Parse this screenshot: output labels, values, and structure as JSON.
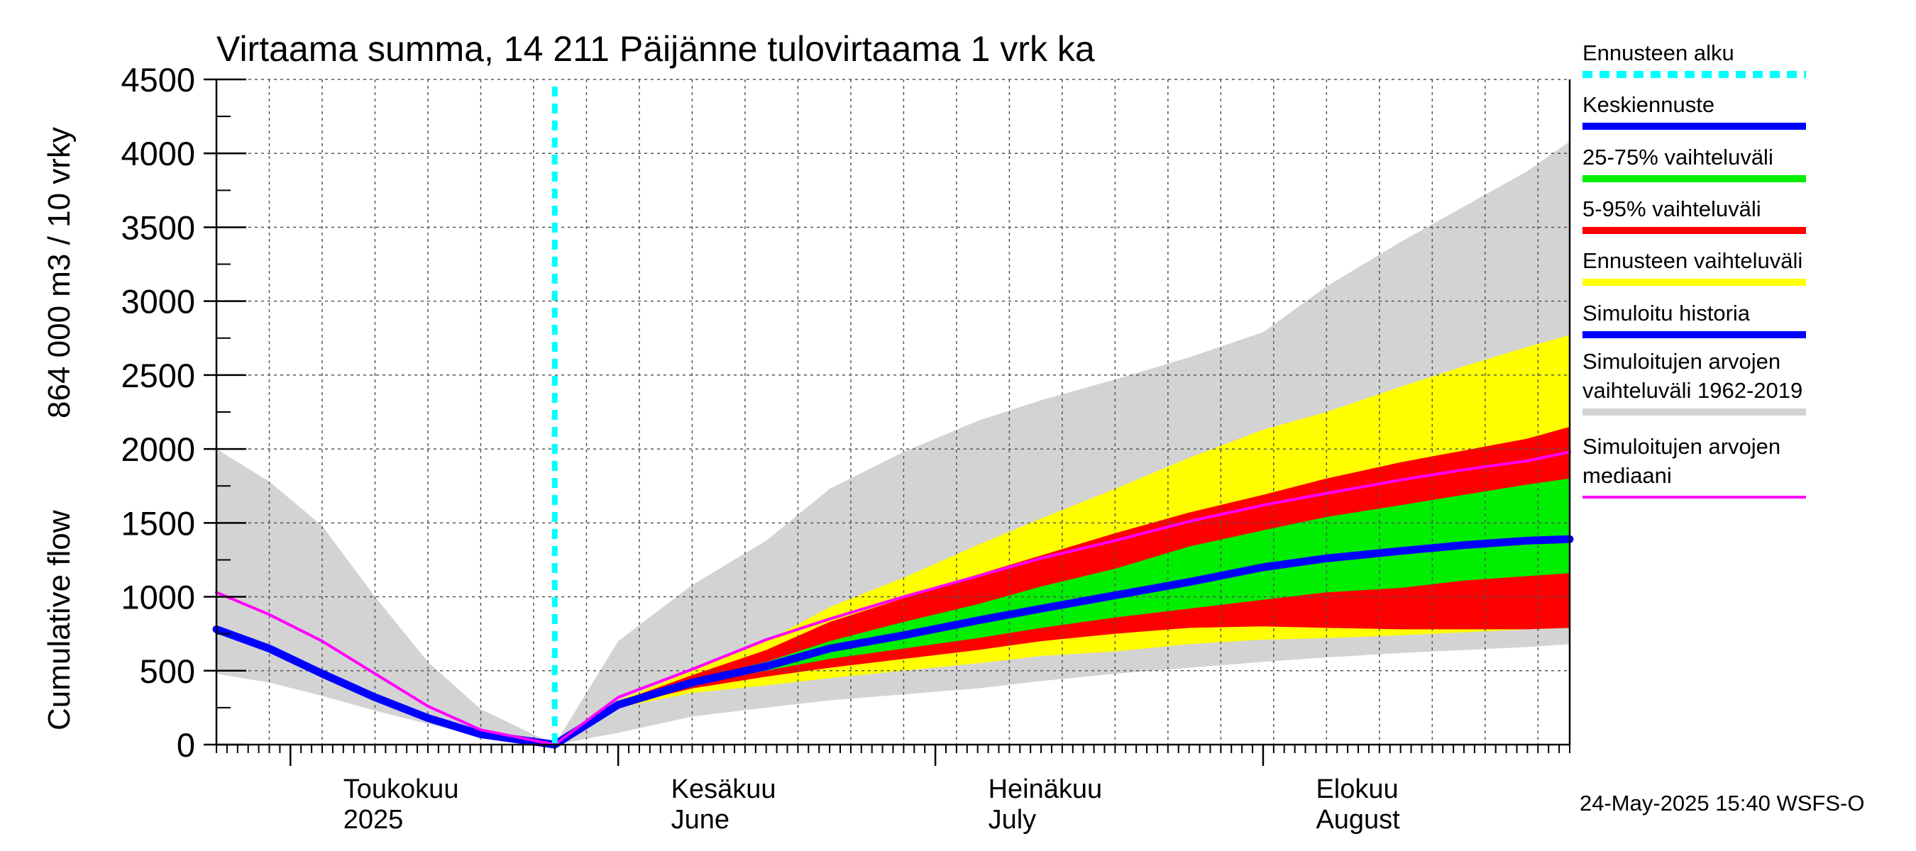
{
  "chart_data": {
    "type": "area",
    "title": "Virtaama summa, 14 211 Päijänne tulovirtaama 1 vrk ka",
    "ylabel_top": "864 000 m3 / 10 vrky",
    "ylabel_bottom": "Cumulative flow",
    "ylim": [
      0,
      4500
    ],
    "yticks": [
      "0",
      "500",
      "1000",
      "1500",
      "2000",
      "2500",
      "3000",
      "3500",
      "4000",
      "4500"
    ],
    "ytick_values": [
      0,
      500,
      1000,
      1500,
      2000,
      2500,
      3000,
      3500,
      4000,
      4500
    ],
    "xlim_days": [
      0,
      128
    ],
    "forecast_start_day": 32,
    "month_labels": [
      {
        "day": 12,
        "fi": "Toukokuu",
        "en": "2025"
      },
      {
        "day": 43,
        "fi": "Kesäkuu",
        "en": "June"
      },
      {
        "day": 73,
        "fi": "Heinäkuu",
        "en": "July"
      },
      {
        "day": 104,
        "fi": "Elokuu",
        "en": "August"
      }
    ],
    "month_boundaries_days": [
      7,
      38,
      68,
      99
    ],
    "x_days": [
      0,
      5,
      10,
      15,
      20,
      25,
      32,
      38,
      45,
      52,
      58,
      65,
      72,
      78,
      85,
      92,
      99,
      105,
      112,
      118,
      124,
      128
    ],
    "series": [
      {
        "name": "Simuloitujen arvojen vaihteluväli 1962-2019 (max)",
        "color": "#d3d3d3",
        "values": [
          2000,
          1780,
          1480,
          1000,
          560,
          240,
          0,
          700,
          1080,
          1380,
          1730,
          1980,
          2190,
          2330,
          2470,
          2620,
          2790,
          3100,
          3400,
          3640,
          3880,
          4080
        ]
      },
      {
        "name": "Simuloitujen arvojen vaihteluväli 1962-2019 (min)",
        "color": "#d3d3d3",
        "values": [
          480,
          420,
          330,
          230,
          140,
          60,
          0,
          80,
          190,
          250,
          300,
          340,
          380,
          430,
          480,
          520,
          560,
          590,
          620,
          640,
          660,
          680
        ]
      },
      {
        "name": "Ennusteen vaihteluväli (max)",
        "color": "#ffff00",
        "values": [
          null,
          null,
          null,
          null,
          null,
          null,
          0,
          300,
          500,
          700,
          930,
          1130,
          1350,
          1530,
          1730,
          1940,
          2130,
          2250,
          2420,
          2560,
          2690,
          2770
        ]
      },
      {
        "name": "Ennusteen vaihteluväli (min)",
        "color": "#ffff00",
        "values": [
          null,
          null,
          null,
          null,
          null,
          null,
          0,
          250,
          350,
          400,
          450,
          500,
          550,
          600,
          630,
          680,
          710,
          720,
          740,
          760,
          780,
          790
        ]
      },
      {
        "name": "5-95% vaihteluväli (max)",
        "color": "#ff0000",
        "values": [
          null,
          null,
          null,
          null,
          null,
          null,
          0,
          290,
          470,
          640,
          830,
          990,
          1150,
          1280,
          1430,
          1570,
          1690,
          1800,
          1910,
          1990,
          2070,
          2150
        ]
      },
      {
        "name": "5-95% vaihteluväli (min)",
        "color": "#ff0000",
        "values": [
          null,
          null,
          null,
          null,
          null,
          null,
          0,
          260,
          380,
          460,
          520,
          580,
          640,
          700,
          750,
          790,
          800,
          790,
          780,
          780,
          780,
          790
        ]
      },
      {
        "name": "25-75% vaihteluväli (max)",
        "color": "#00ee00",
        "values": [
          null,
          null,
          null,
          null,
          null,
          null,
          0,
          275,
          440,
          560,
          700,
          830,
          950,
          1070,
          1190,
          1340,
          1450,
          1540,
          1620,
          1690,
          1760,
          1800
        ]
      },
      {
        "name": "25-75% vaihteluväli (min)",
        "color": "#00ee00",
        "values": [
          null,
          null,
          null,
          null,
          null,
          null,
          0,
          265,
          410,
          500,
          580,
          650,
          720,
          790,
          860,
          920,
          980,
          1030,
          1060,
          1110,
          1140,
          1160
        ]
      },
      {
        "name": "Keskiennuste",
        "color": "#0000ff",
        "values": [
          null,
          null,
          null,
          null,
          null,
          null,
          0,
          270,
          420,
          530,
          650,
          740,
          840,
          920,
          1010,
          1100,
          1200,
          1260,
          1310,
          1350,
          1380,
          1390
        ]
      },
      {
        "name": "Simuloitu historia",
        "color": "#0000ff",
        "values": [
          780,
          650,
          480,
          320,
          180,
          70,
          0,
          null,
          null,
          null,
          null,
          null,
          null,
          null,
          null,
          null,
          null,
          null,
          null,
          null,
          null,
          null
        ]
      },
      {
        "name": "Simuloitujen arvojen mediaani",
        "color": "#ff00ff",
        "values": [
          1030,
          880,
          700,
          480,
          260,
          100,
          0,
          320,
          510,
          710,
          850,
          1000,
          1140,
          1260,
          1380,
          1510,
          1620,
          1700,
          1790,
          1860,
          1920,
          1980
        ]
      }
    ]
  },
  "legend": [
    {
      "label": "Ennusteen alku",
      "color": "#00ffff",
      "style": "dashed"
    },
    {
      "label": "Keskiennuste",
      "color": "#0000ff",
      "style": "solid"
    },
    {
      "label": "25-75% vaihteluväli",
      "color": "#00ee00",
      "style": "solid"
    },
    {
      "label": "5-95% vaihteluväli",
      "color": "#ff0000",
      "style": "solid"
    },
    {
      "label": "Ennusteen vaihteluväli",
      "color": "#ffff00",
      "style": "solid"
    },
    {
      "label": "Simuloitu historia",
      "color": "#0000ff",
      "style": "solid"
    },
    {
      "label": "Simuloitujen arvojen\nvaihteluväli 1962-2019",
      "color": "#d3d3d3",
      "style": "solid"
    },
    {
      "label": "Simuloitujen arvojen\nmediaani",
      "color": "#ff00ff",
      "style": "thin"
    }
  ],
  "timestamp": "24-May-2025 15:40 WSFS-O"
}
